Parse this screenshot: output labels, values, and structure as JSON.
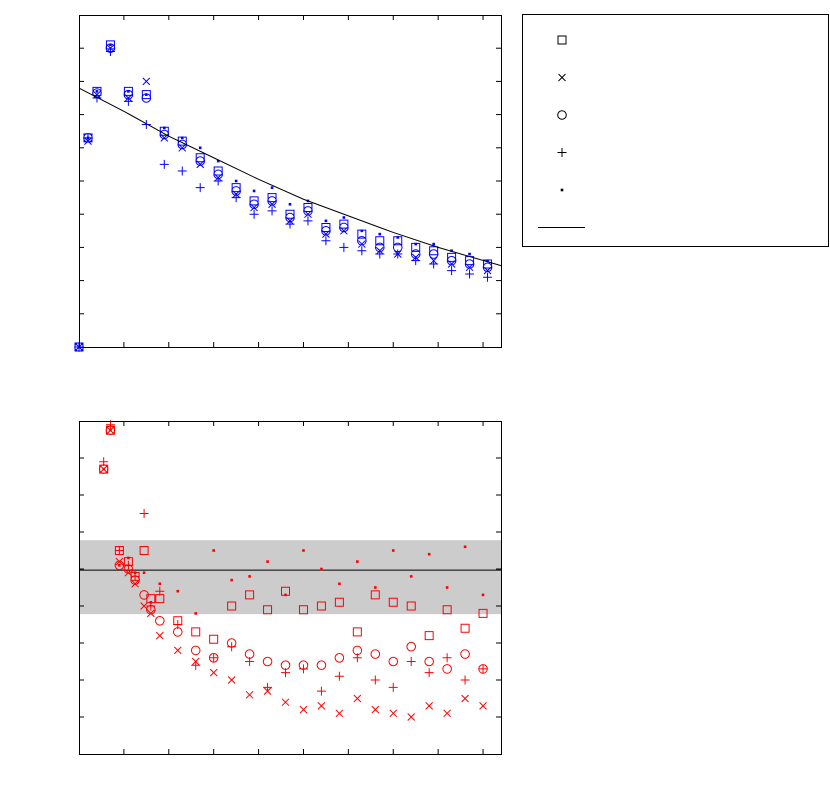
{
  "chart_data": [
    {
      "type": "scatter",
      "xlim": [
        0,
        9.4
      ],
      "xticks": [
        1,
        2,
        3,
        4,
        5,
        6,
        7,
        8,
        9
      ],
      "ylim": [
        0,
        10
      ],
      "yticks": [
        1,
        2,
        3,
        4,
        5,
        6,
        7,
        8,
        9
      ],
      "x": [
        0,
        0.2,
        0.4,
        0.7,
        1.1,
        1.5,
        1.9,
        2.3,
        2.7,
        3.1,
        3.5,
        3.9,
        4.3,
        4.7,
        5.1,
        5.5,
        5.9,
        6.3,
        6.7,
        7.1,
        7.5,
        7.9,
        8.3,
        8.7,
        9.1
      ],
      "series": [
        {
          "marker": "square",
          "color": "#0000ff",
          "values": [
            0,
            6.3,
            7.7,
            9.1,
            7.7,
            7.6,
            6.5,
            6.2,
            5.7,
            5.3,
            4.8,
            4.4,
            4.5,
            4.0,
            4.2,
            3.6,
            3.7,
            3.4,
            3.2,
            3.2,
            3.0,
            2.9,
            2.7,
            2.6,
            2.5
          ]
        },
        {
          "marker": "x",
          "color": "#0000ff",
          "values": [
            0,
            6.2,
            7.6,
            9.0,
            7.5,
            8.0,
            6.3,
            6.0,
            5.5,
            5.1,
            4.6,
            4.2,
            4.3,
            3.8,
            4.0,
            3.4,
            3.5,
            3.1,
            2.9,
            2.8,
            2.7,
            2.6,
            2.5,
            2.4,
            2.3
          ]
        },
        {
          "marker": "circle",
          "color": "#0000ff",
          "values": [
            0,
            6.3,
            7.65,
            9.0,
            7.6,
            7.5,
            6.4,
            6.1,
            5.6,
            5.2,
            4.7,
            4.3,
            4.4,
            3.9,
            4.1,
            3.5,
            3.6,
            3.2,
            3.0,
            3.0,
            2.8,
            2.8,
            2.6,
            2.5,
            2.4
          ]
        },
        {
          "marker": "plus",
          "color": "#0000ff",
          "values": [
            0,
            6.3,
            7.5,
            8.9,
            7.4,
            6.7,
            5.5,
            5.3,
            4.8,
            5.0,
            4.5,
            4.0,
            4.1,
            3.7,
            3.8,
            3.2,
            3.0,
            2.9,
            2.8,
            2.8,
            2.6,
            2.5,
            2.3,
            2.2,
            2.1
          ]
        },
        {
          "marker": "dot",
          "color": "#0000ff",
          "values": [
            0,
            6.3,
            7.7,
            9.1,
            7.7,
            7.6,
            6.6,
            6.3,
            6.0,
            5.6,
            5.0,
            4.7,
            4.8,
            4.3,
            4.4,
            3.8,
            3.9,
            3.5,
            3.4,
            3.3,
            3.1,
            3.1,
            2.9,
            2.8,
            2.6
          ]
        },
        {
          "marker": "line",
          "color": "#000000",
          "x": [
            0,
            1,
            2,
            3,
            4,
            5,
            6,
            7,
            8,
            9.4
          ],
          "values": [
            7.8,
            7.1,
            6.35,
            5.7,
            5.05,
            4.45,
            3.95,
            3.45,
            3.0,
            2.45
          ]
        }
      ]
    },
    {
      "type": "scatter",
      "xlim": [
        0,
        9.4
      ],
      "xticks": [
        1,
        2,
        3,
        4,
        5,
        6,
        7,
        8,
        9
      ],
      "ylim": [
        0,
        9
      ],
      "yticks": [
        1,
        2,
        3,
        4,
        5,
        6,
        7,
        8
      ],
      "band": [
        3.78,
        5.78
      ],
      "hline": 4.97,
      "band_color": "#cccccc",
      "x": [
        0.55,
        0.7,
        0.9,
        1.1,
        1.25,
        1.45,
        1.6,
        1.8,
        2.2,
        2.6,
        3.0,
        3.4,
        3.8,
        4.2,
        4.6,
        5.0,
        5.4,
        5.8,
        6.2,
        6.6,
        7.0,
        7.4,
        7.8,
        8.2,
        8.6,
        9.0
      ],
      "series": [
        {
          "marker": "square",
          "color": "#ff0000",
          "values": [
            7.7,
            8.75,
            5.5,
            5.2,
            4.8,
            5.5,
            4.2,
            4.2,
            3.6,
            3.3,
            3.1,
            4.0,
            4.3,
            3.9,
            4.4,
            3.9,
            4.0,
            4.1,
            3.3,
            4.3,
            4.1,
            4.0,
            3.2,
            3.9,
            3.4,
            3.8
          ]
        },
        {
          "marker": "x",
          "color": "#ff0000",
          "values": [
            7.7,
            8.75,
            5.2,
            4.9,
            4.6,
            4.0,
            3.8,
            3.2,
            2.8,
            2.5,
            2.2,
            2.0,
            1.6,
            1.7,
            1.4,
            1.2,
            1.3,
            1.1,
            1.5,
            1.2,
            1.1,
            1.0,
            1.3,
            1.1,
            1.5,
            1.3
          ]
        },
        {
          "marker": "circle",
          "color": "#ff0000",
          "values": [
            7.7,
            8.75,
            5.1,
            5.0,
            4.7,
            4.3,
            3.9,
            3.6,
            3.3,
            2.8,
            2.6,
            3.0,
            2.7,
            2.5,
            2.4,
            2.4,
            2.4,
            2.6,
            2.8,
            2.7,
            2.5,
            2.9,
            2.5,
            2.3,
            2.7,
            2.3
          ]
        },
        {
          "marker": "plus",
          "color": "#ff0000",
          "values": [
            7.9,
            8.9,
            5.5,
            5.1,
            4.8,
            6.5,
            4.0,
            4.4,
            3.5,
            2.4,
            2.6,
            2.9,
            2.5,
            1.8,
            2.2,
            2.3,
            1.7,
            2.1,
            2.6,
            2.0,
            1.8,
            2.5,
            2.2,
            2.6,
            2.0,
            2.3
          ]
        },
        {
          "marker": "dot",
          "color": "#ff0000",
          "values": [
            7.7,
            8.75,
            5.1,
            5.3,
            4.9,
            4.9,
            4.1,
            4.6,
            4.4,
            3.8,
            5.5,
            4.7,
            4.8,
            5.2,
            4.3,
            5.5,
            5.0,
            4.6,
            5.2,
            4.5,
            5.5,
            4.8,
            5.4,
            4.5,
            5.6,
            4.3
          ]
        }
      ]
    }
  ],
  "legend_color": "#000000"
}
